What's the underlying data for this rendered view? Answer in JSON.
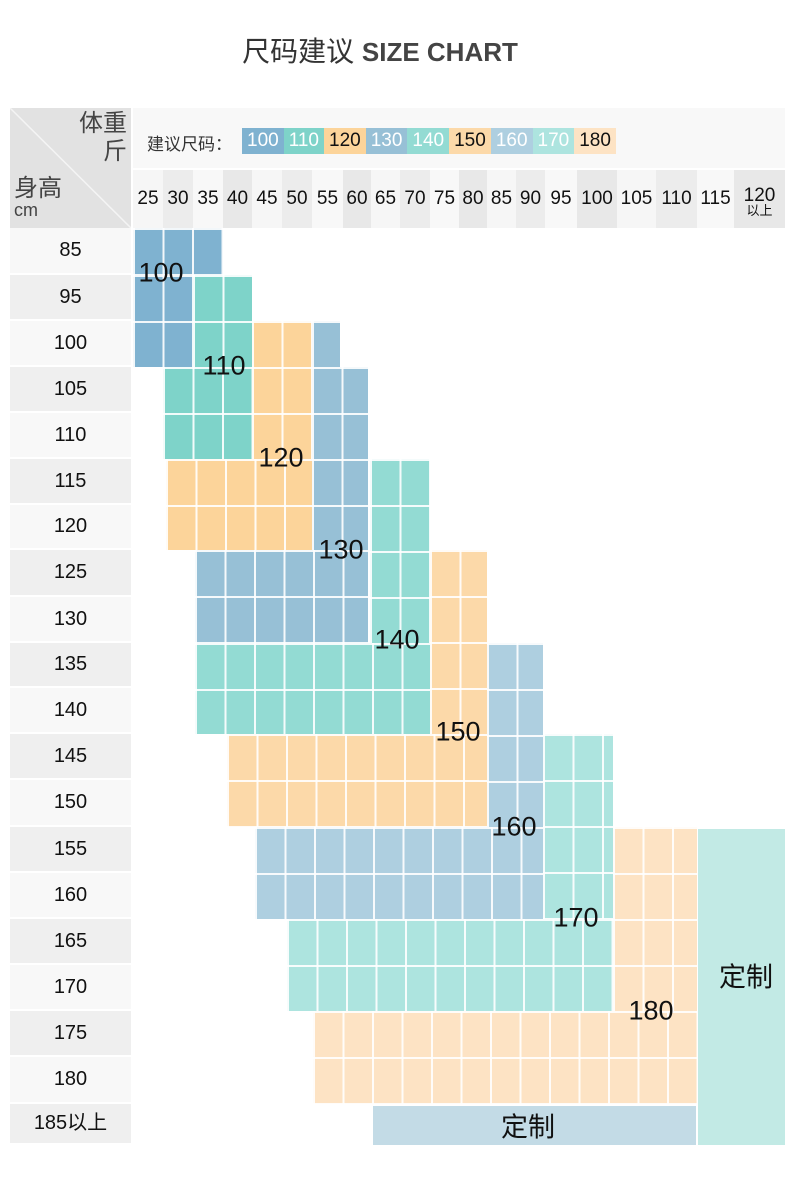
{
  "title": {
    "cn": "尺码建议",
    "en": "SIZE CHART"
  },
  "corner": {
    "weight_label": "体重",
    "weight_unit": "斤",
    "height_label": "身高",
    "height_unit": "cm"
  },
  "legend": {
    "label": "建议尺码：",
    "sizes": [
      {
        "text": "100",
        "bg": "#7fb2d0",
        "fg": "#ffffff"
      },
      {
        "text": "110",
        "bg": "#7ed3c9",
        "fg": "#ffffff"
      },
      {
        "text": "120",
        "bg": "#fcd49a",
        "fg": "#111111"
      },
      {
        "text": "130",
        "bg": "#97c0d6",
        "fg": "#ffffff"
      },
      {
        "text": "140",
        "bg": "#93dbd3",
        "fg": "#ffffff"
      },
      {
        "text": "150",
        "bg": "#fcd9a9",
        "fg": "#111111"
      },
      {
        "text": "160",
        "bg": "#aecfe0",
        "fg": "#ffffff"
      },
      {
        "text": "170",
        "bg": "#ade4df",
        "fg": "#ffffff"
      },
      {
        "text": "180",
        "bg": "#fde3c4",
        "fg": "#111111"
      }
    ]
  },
  "weights": [
    "25",
    "30",
    "35",
    "40",
    "45",
    "50",
    "55",
    "60",
    "65",
    "70",
    "75",
    "80",
    "85",
    "90",
    "95",
    "100",
    "105",
    "110",
    "115",
    "120"
  ],
  "weight_last_suffix": "以上",
  "heights": [
    "85",
    "95",
    "100",
    "105",
    "110",
    "115",
    "120",
    "125",
    "130",
    "135",
    "140",
    "145",
    "150",
    "155",
    "160",
    "165",
    "170",
    "175",
    "180",
    "185以上"
  ],
  "blocks": [
    {
      "size": "100",
      "color": "#7fb2d0"
    },
    {
      "size": "110",
      "color": "#7ed3c9"
    },
    {
      "size": "120",
      "color": "#fcd49a"
    },
    {
      "size": "130",
      "color": "#97c0d6"
    },
    {
      "size": "140",
      "color": "#93dbd3"
    },
    {
      "size": "150",
      "color": "#fcd9a9"
    },
    {
      "size": "160",
      "color": "#aecfe0"
    },
    {
      "size": "170",
      "color": "#ade4df"
    },
    {
      "size": "180",
      "color": "#fde3c4"
    },
    {
      "size": "定制",
      "color": "#c2eae5"
    },
    {
      "size": "定制",
      "color": "#c3dbe6"
    }
  ]
}
